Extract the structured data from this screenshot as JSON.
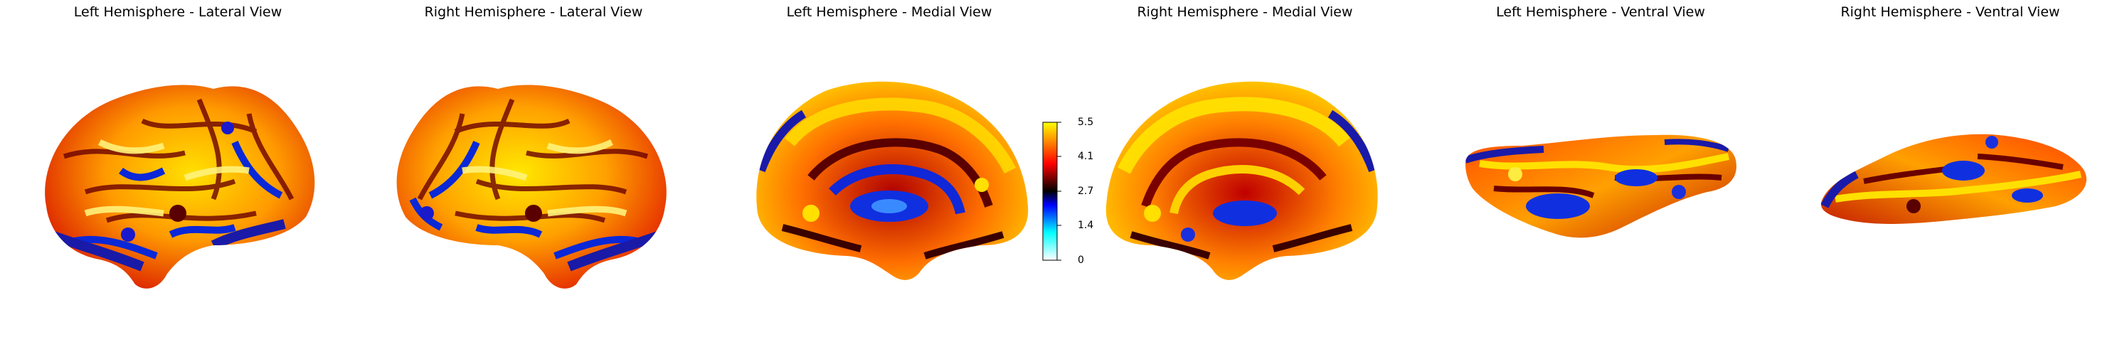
{
  "panels": [
    {
      "title": "Left Hemisphere - Lateral View"
    },
    {
      "title": "Right Hemisphere - Lateral View"
    },
    {
      "title": "Left Hemisphere - Medial View"
    },
    {
      "title": "Right Hemisphere - Medial View"
    },
    {
      "title": "Left Hemisphere - Ventral View"
    },
    {
      "title": "Right Hemisphere - Ventral View"
    }
  ],
  "colorbar": {
    "ticks": [
      "5.5",
      "4.1",
      "2.7",
      "1.4",
      "0"
    ],
    "colormap": [
      "#ffffff",
      "#00ffff",
      "#0000ff",
      "#000000",
      "#ff0000",
      "#ffff00"
    ]
  }
}
